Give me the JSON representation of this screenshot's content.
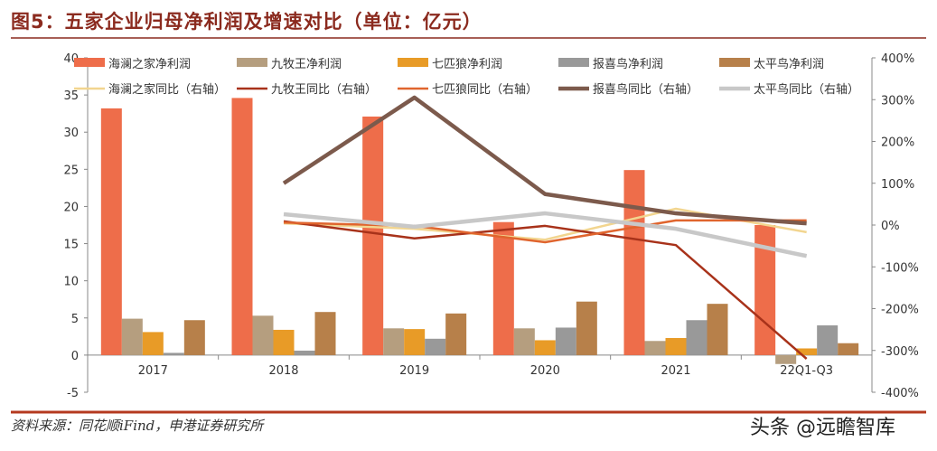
{
  "title": "图5：五家企业归母净利润及增速对比（单位：亿元）",
  "source": "资料来源：同花顺iFind，申港证券研究所",
  "watermark": "头条 @远瞻智库",
  "chart_data": {
    "type": "bar+line",
    "categories": [
      "2017",
      "2018",
      "2019",
      "2020",
      "2021",
      "22Q1-Q3"
    ],
    "ylim": [
      -5,
      40
    ],
    "yticks": [
      -5,
      0,
      5,
      10,
      15,
      20,
      25,
      30,
      35,
      40
    ],
    "y2lim": [
      -400,
      400
    ],
    "y2ticks": [
      -400,
      -300,
      -200,
      -100,
      0,
      100,
      200,
      300,
      400
    ],
    "y2unit": "%",
    "legend_placement": "top",
    "bar_series": [
      {
        "name": "海澜之家净利润",
        "color": "#ee6d4a",
        "values": [
          33.2,
          34.6,
          32.1,
          17.9,
          24.9,
          17.5
        ]
      },
      {
        "name": "九牧王净利润",
        "color": "#b59e7f",
        "values": [
          4.9,
          5.3,
          3.6,
          3.6,
          1.9,
          -1.2
        ]
      },
      {
        "name": "七匹狼净利润",
        "color": "#e89b27",
        "values": [
          3.1,
          3.4,
          3.5,
          2.0,
          2.3,
          0.9
        ]
      },
      {
        "name": "报喜鸟净利润",
        "color": "#999999",
        "values": [
          0.3,
          0.6,
          2.2,
          3.7,
          4.7,
          4.0
        ]
      },
      {
        "name": "太平鸟净利润",
        "color": "#b7804a",
        "values": [
          4.7,
          5.8,
          5.6,
          7.2,
          6.9,
          1.6
        ]
      }
    ],
    "line_series": [
      {
        "name": "海澜之家同比（右轴）",
        "color": "#f2d58f",
        "width": 2.5,
        "values": [
          null,
          4,
          -9,
          -35,
          39,
          -17
        ]
      },
      {
        "name": "九牧王同比（右轴）",
        "color": "#a8321a",
        "width": 2.5,
        "values": [
          null,
          9,
          -32,
          -2,
          -48,
          -320
        ]
      },
      {
        "name": "七匹狼同比（右轴）",
        "color": "#e0652e",
        "width": 2.5,
        "values": [
          null,
          6,
          -2,
          -41,
          11,
          11
        ]
      },
      {
        "name": "报喜鸟同比（右轴）",
        "color": "#7c5a4c",
        "width": 4.5,
        "values": [
          null,
          100,
          305,
          74,
          28,
          4
        ]
      },
      {
        "name": "太平鸟同比（右轴）",
        "color": "#c8c8c8",
        "width": 4.5,
        "values": [
          null,
          26,
          -4,
          28,
          -9,
          -74
        ]
      }
    ]
  }
}
